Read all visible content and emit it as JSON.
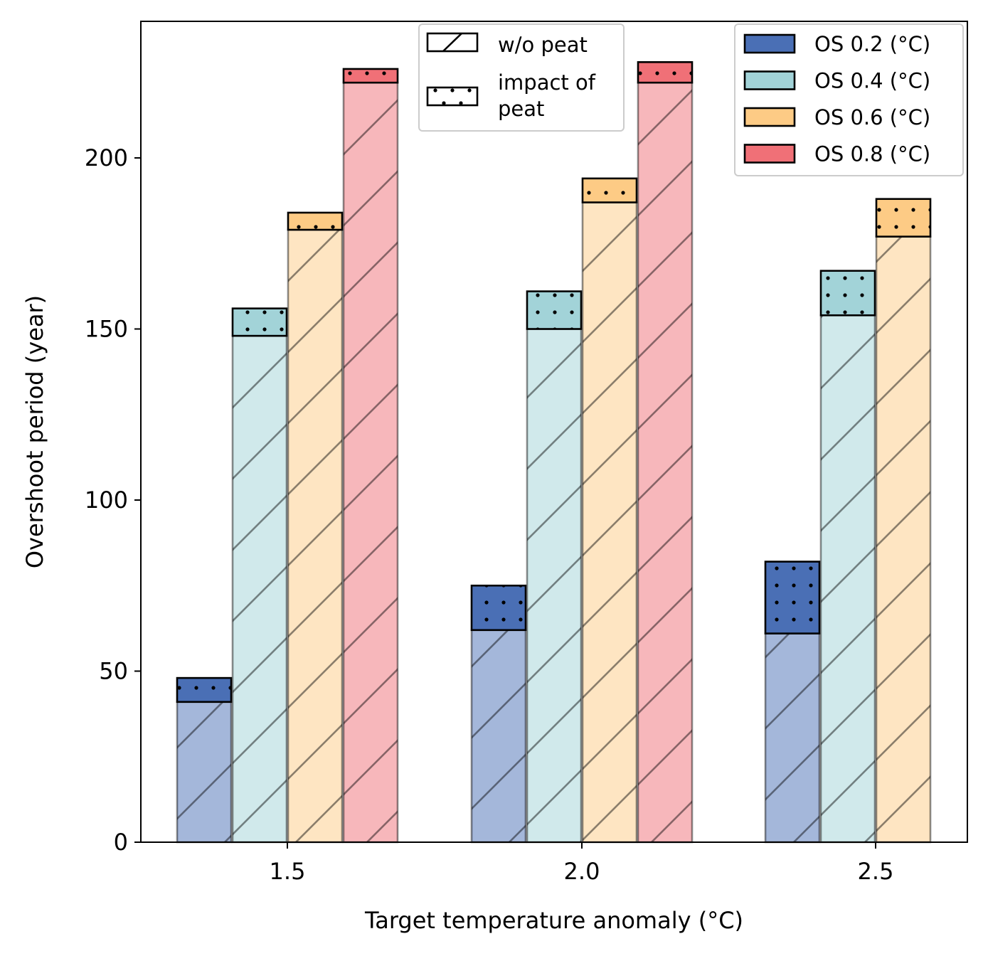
{
  "chart_data": {
    "type": "bar",
    "subtype": "stacked-grouped",
    "xlabel": "Target temperature anomaly (°C)",
    "ylabel": "Overshoot period (year)",
    "categories": [
      "1.5",
      "2.0",
      "2.5"
    ],
    "ylim": [
      0,
      240
    ],
    "yticks": [
      0,
      50,
      100,
      150,
      200
    ],
    "grid": false,
    "series": [
      {
        "name": "OS 0.2 (°C)",
        "color": "#4a6fb5",
        "base": [
          41,
          62,
          61
        ],
        "peat_impact": [
          7,
          13,
          21
        ]
      },
      {
        "name": "OS 0.4 (°C)",
        "color": "#a2d3d8",
        "base": [
          148,
          150,
          154
        ],
        "peat_impact": [
          8,
          11,
          13
        ]
      },
      {
        "name": "OS 0.6 (°C)",
        "color": "#fdcb85",
        "base": [
          179,
          187,
          177
        ],
        "peat_impact": [
          5,
          7,
          11
        ]
      },
      {
        "name": "OS 0.8 (°C)",
        "color": "#f07077",
        "base": [
          222,
          222,
          null
        ],
        "peat_impact": [
          4,
          6,
          null
        ]
      }
    ],
    "legend_series_position": "top-right",
    "legend_pattern_position": "top-center",
    "legend_patterns": [
      {
        "label": "w/o peat",
        "pattern": "hatch"
      },
      {
        "label": "impact of\npeat",
        "pattern": "dots"
      }
    ]
  }
}
